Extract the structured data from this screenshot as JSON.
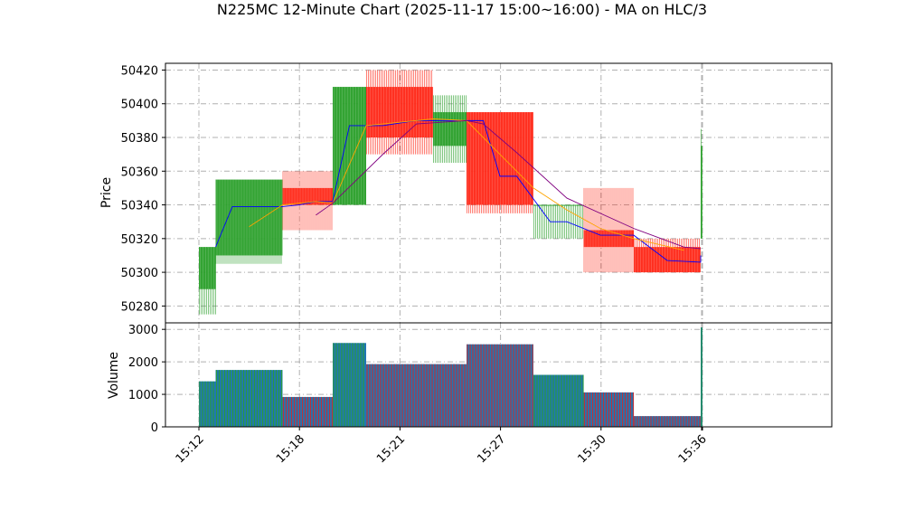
{
  "chart_data": [
    {
      "type": "candlestick",
      "panel": "price",
      "title": "N225MC 12-Minute Chart (2025-11-17 15:00~16:00) - MA on HLC/3",
      "ylabel": "Price",
      "ylim": [
        50270,
        50424
      ],
      "yticks": [
        50280,
        50300,
        50320,
        50340,
        50360,
        50380,
        50400,
        50420
      ],
      "grid": true,
      "up_color": "#2ca02c",
      "down_color": "#ff2a1a",
      "candles": [
        {
          "start": "15:12",
          "end": "15:13",
          "open": 50290,
          "high": 50315,
          "low": 50275,
          "close": 50315
        },
        {
          "start": "15:13",
          "end": "15:17",
          "open": 50310,
          "high": 50355,
          "low": 50305,
          "close": 50355
        },
        {
          "start": "15:17",
          "end": "15:20",
          "open": 50350,
          "high": 50360,
          "low": 50325,
          "close": 50340
        },
        {
          "start": "15:20",
          "end": "15:22",
          "open": 50340,
          "high": 50410,
          "low": 50340,
          "close": 50410
        },
        {
          "start": "15:22",
          "end": "15:26",
          "open": 50410,
          "high": 50420,
          "low": 50370,
          "close": 50380
        },
        {
          "start": "15:26",
          "end": "15:28",
          "open": 50375,
          "high": 50405,
          "low": 50365,
          "close": 50395
        },
        {
          "start": "15:28",
          "end": "15:32",
          "open": 50395,
          "high": 50395,
          "low": 50335,
          "close": 50340
        },
        {
          "start": "15:32",
          "end": "15:35",
          "open": 50340,
          "high": 50340,
          "low": 50320,
          "close": 50340
        },
        {
          "start": "15:35",
          "end": "15:38",
          "open": 50325,
          "high": 50350,
          "low": 50300,
          "close": 50315
        },
        {
          "start": "15:38",
          "end": "15:42",
          "open": 50315,
          "high": 50320,
          "low": 50300,
          "close": 50300
        },
        {
          "start": "15:42",
          "end": "15:42",
          "open": 50320,
          "high": 50385,
          "low": 50320,
          "close": 50375
        }
      ],
      "ma_lines": [
        {
          "color": "#0000ff",
          "points": [
            [
              "15:13",
              50315
            ],
            [
              "15:14",
              50339
            ],
            [
              "15:17",
              50339
            ],
            [
              "15:18",
              50340
            ],
            [
              "15:19",
              50342
            ],
            [
              "15:20",
              50342
            ],
            [
              "15:21",
              50387
            ],
            [
              "15:23",
              50387
            ],
            [
              "15:25",
              50390
            ],
            [
              "15:28",
              50390
            ],
            [
              "15:29",
              50390
            ],
            [
              "15:30",
              50357
            ],
            [
              "15:31",
              50357
            ],
            [
              "15:33",
              50330
            ],
            [
              "15:34",
              50330
            ],
            [
              "15:36",
              50322
            ],
            [
              "15:38",
              50322
            ],
            [
              "15:40",
              50307
            ],
            [
              "15:42",
              50306
            ],
            [
              "15:42",
              50310
            ]
          ]
        },
        {
          "color": "#ffa500",
          "points": [
            [
              "15:15",
              50327
            ],
            [
              "15:17",
              50340
            ],
            [
              "15:19",
              50342
            ],
            [
              "15:20",
              50341
            ],
            [
              "15:22",
              50387
            ],
            [
              "15:24",
              50389
            ],
            [
              "15:26",
              50391
            ],
            [
              "15:28",
              50390
            ],
            [
              "15:30",
              50370
            ],
            [
              "15:32",
              50350
            ],
            [
              "15:34",
              50337
            ],
            [
              "15:36",
              50326
            ],
            [
              "15:38",
              50320
            ],
            [
              "15:41",
              50313
            ]
          ]
        },
        {
          "color": "#800080",
          "points": [
            [
              "15:19",
              50334
            ],
            [
              "15:20",
              50341
            ],
            [
              "15:23",
              50370
            ],
            [
              "15:25",
              50388
            ],
            [
              "15:28",
              50390
            ],
            [
              "15:29",
              50388
            ],
            [
              "15:31",
              50371
            ],
            [
              "15:34",
              50344
            ],
            [
              "15:38",
              50326
            ],
            [
              "15:41",
              50315
            ],
            [
              "15:42",
              50314
            ]
          ]
        }
      ]
    },
    {
      "type": "bar",
      "panel": "volume",
      "ylabel": "Volume",
      "ylim": [
        0,
        3200
      ],
      "yticks": [
        0,
        1000,
        2000,
        3000
      ],
      "grid": true,
      "bars": [
        {
          "start": "15:12",
          "end": "15:13",
          "value": 1400
        },
        {
          "start": "15:13",
          "end": "15:17",
          "value": 1750
        },
        {
          "start": "15:17",
          "end": "15:20",
          "value": 920
        },
        {
          "start": "15:20",
          "end": "15:22",
          "value": 2580
        },
        {
          "start": "15:22",
          "end": "15:28",
          "value": 1930
        },
        {
          "start": "15:28",
          "end": "15:32",
          "value": 2540
        },
        {
          "start": "15:32",
          "end": "15:35",
          "value": 1600
        },
        {
          "start": "15:35",
          "end": "15:38",
          "value": 1060
        },
        {
          "start": "15:38",
          "end": "15:42",
          "value": 330
        },
        {
          "start": "15:42",
          "end": "15:42",
          "value": 3060
        }
      ]
    }
  ],
  "x_axis": {
    "tick_labels": [
      "15:12",
      "15:18",
      "15:21",
      "15:27",
      "15:30",
      "15:36"
    ]
  }
}
